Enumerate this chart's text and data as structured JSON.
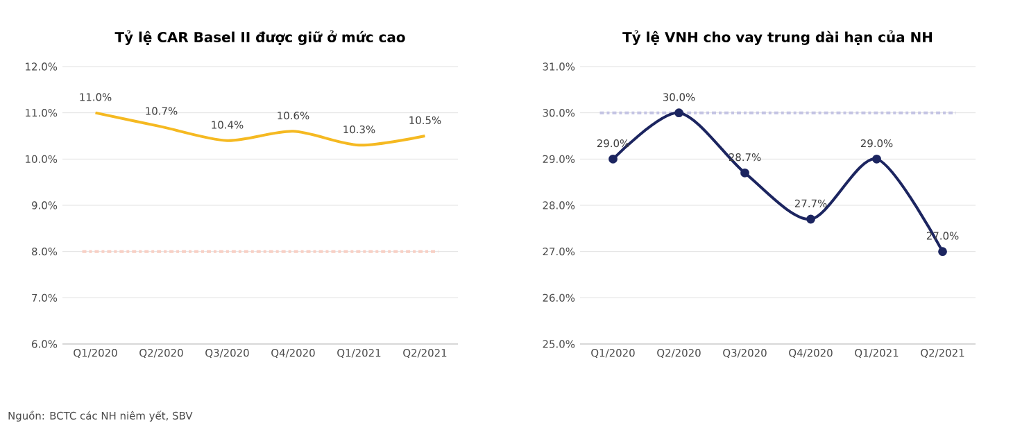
{
  "chart_data": [
    {
      "type": "line",
      "title": "Tỷ lệ CAR Basel II được giữ ở mức cao",
      "categories": [
        "Q1/2020",
        "Q2/2020",
        "Q3/2020",
        "Q4/2020",
        "Q1/2021",
        "Q2/2021"
      ],
      "series": [
        {
          "color": "#f5b921",
          "values": [
            11.0,
            10.7,
            10.4,
            10.6,
            10.3,
            10.5
          ],
          "value_labels": [
            "11.0%",
            "10.7%",
            "10.4%",
            "10.6%",
            "10.3%",
            "10.5%"
          ]
        }
      ],
      "ylim": [
        6,
        12
      ],
      "yticks": [
        {
          "value": 6,
          "label": "6.0%"
        },
        {
          "value": 7,
          "label": "7.0%"
        },
        {
          "value": 8,
          "label": "8.0%"
        },
        {
          "value": 9,
          "label": "9.0%"
        },
        {
          "value": 10,
          "label": "10.0%"
        },
        {
          "value": 11,
          "label": "11.0%"
        },
        {
          "value": 12,
          "label": "12.0%"
        }
      ],
      "grid": "y",
      "marker": "none",
      "line_style": "solid",
      "ref_lines": [
        {
          "axis": "y",
          "value": 8,
          "color": "#f8cfc4",
          "line_style": "dashdot"
        }
      ],
      "annotations": [
        "Nguồn: BCTC các NH niêm yết, SBV"
      ]
    },
    {
      "type": "line",
      "title": "Tỷ lệ VNH cho vay trung dài hạn của NH",
      "categories": [
        "Q1/2020",
        "Q2/2020",
        "Q3/2020",
        "Q4/2020",
        "Q1/2021",
        "Q2/2021"
      ],
      "series": [
        {
          "color": "#1c2560",
          "values": [
            29.0,
            30.0,
            28.7,
            27.7,
            29.0,
            27.0
          ],
          "value_labels": [
            "29.0%",
            "30.0%",
            "28.7%",
            "27.7%",
            "29.0%",
            "27.0%"
          ]
        }
      ],
      "ylim": [
        25,
        31
      ],
      "yticks": [
        {
          "value": 25,
          "label": "25.0%"
        },
        {
          "value": 26,
          "label": "26.0%"
        },
        {
          "value": 27,
          "label": "27.0%"
        },
        {
          "value": 28,
          "label": "28.0%"
        },
        {
          "value": 29,
          "label": "29.0%"
        },
        {
          "value": 30,
          "label": "30.0%"
        },
        {
          "value": 31,
          "label": "31.0%"
        }
      ],
      "grid": "y",
      "marker": "circle",
      "line_style": "solid",
      "ref_lines": [
        {
          "axis": "y",
          "value": 30,
          "color": "#c3c3e3",
          "line_style": "dashdot"
        }
      ]
    }
  ]
}
